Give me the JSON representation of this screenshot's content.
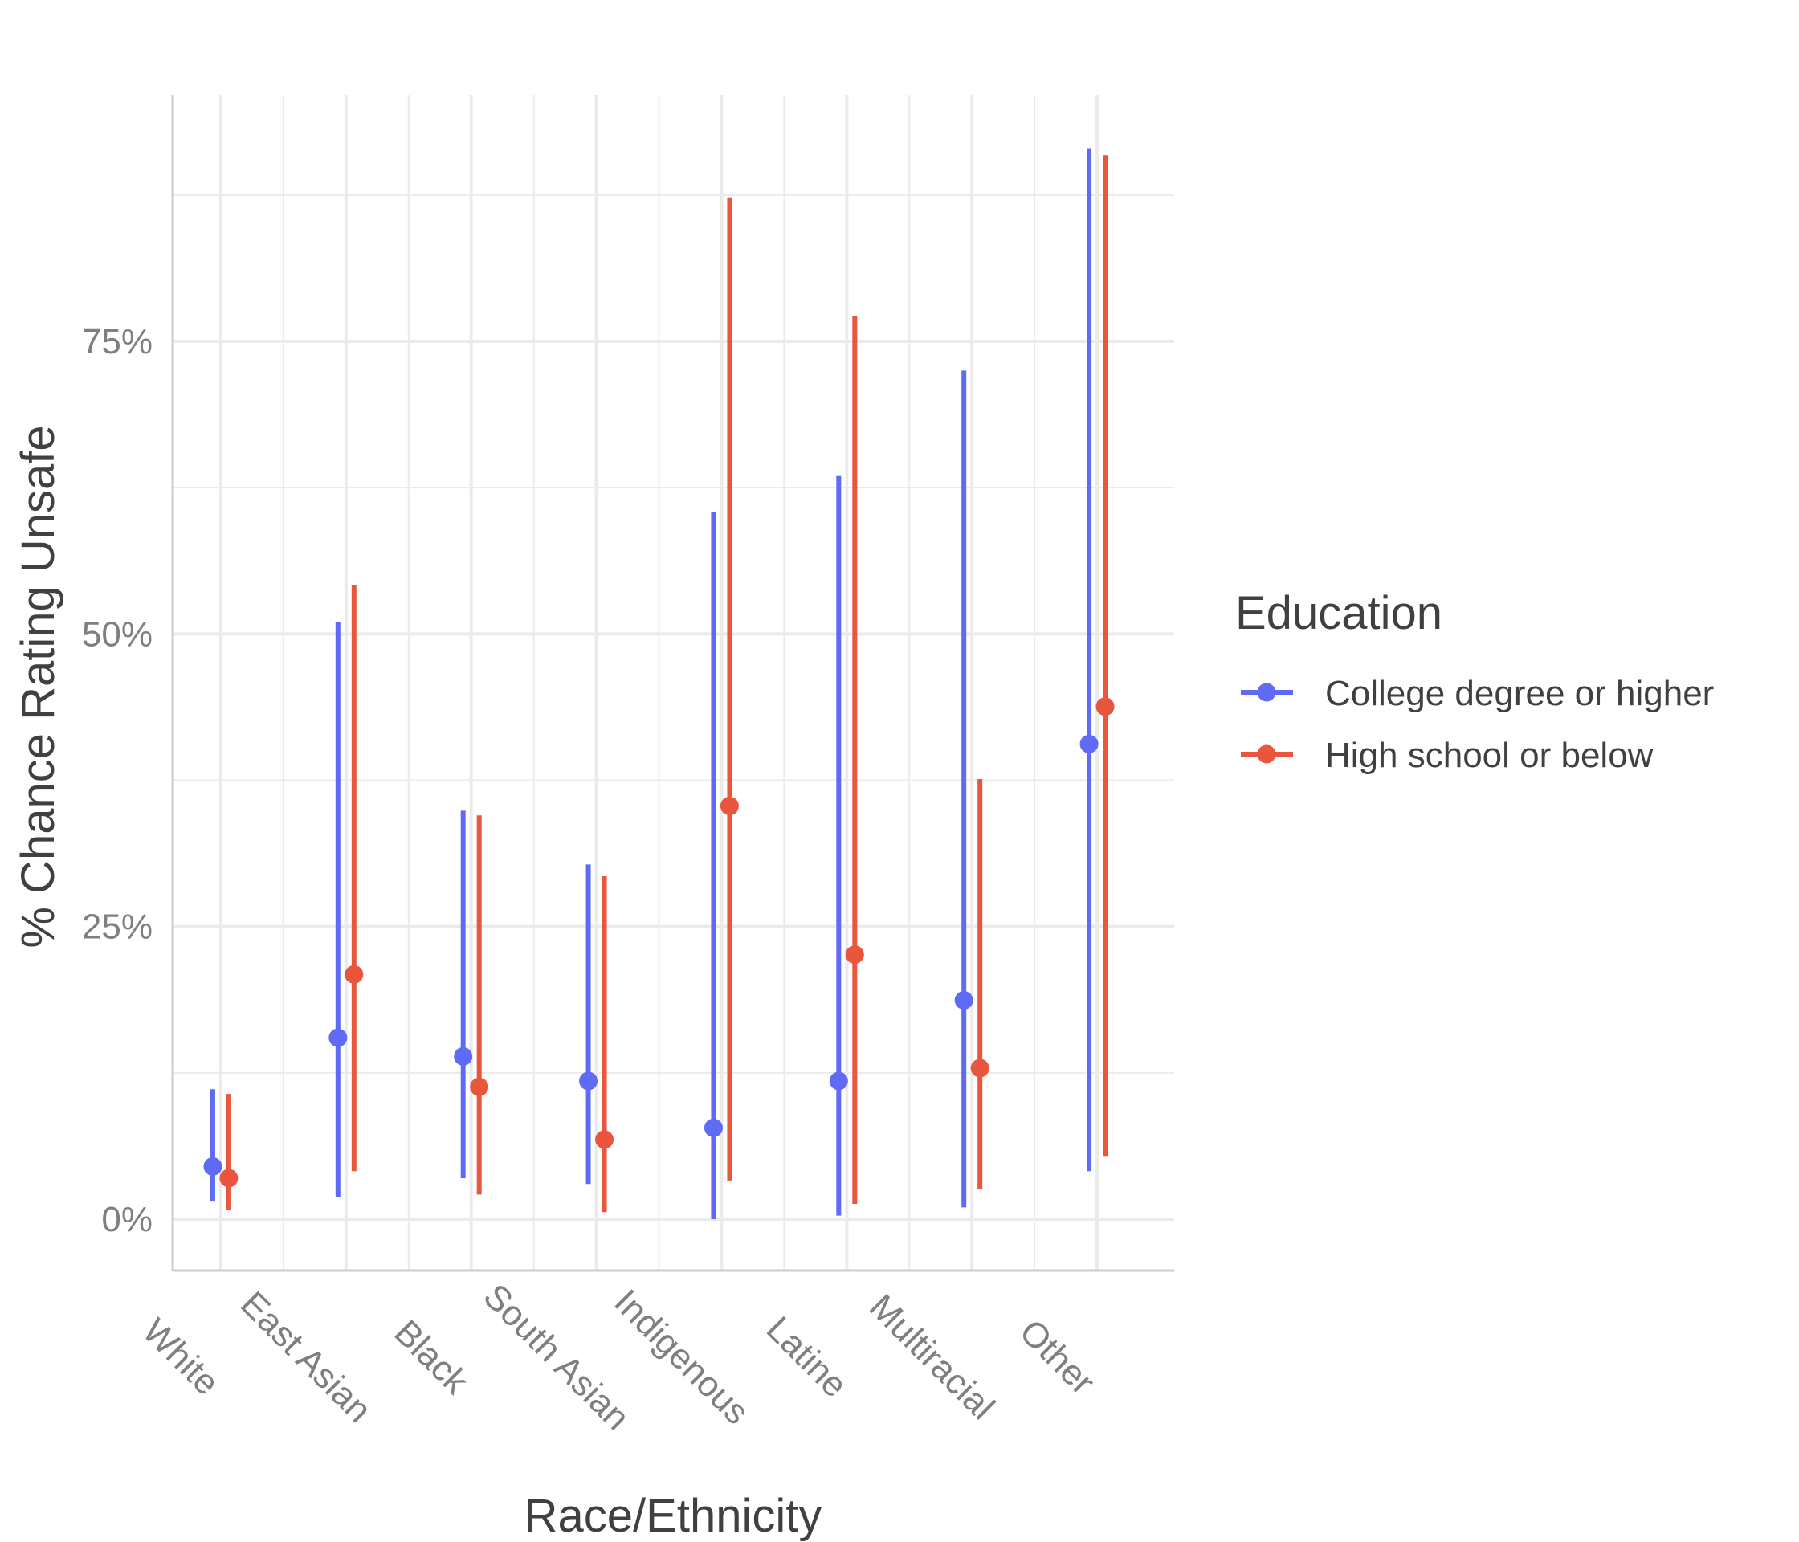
{
  "chart_data": {
    "type": "errorbar",
    "title": "",
    "xlabel": "Race/Ethnicity",
    "ylabel": "% Chance Rating Unsafe",
    "ylim": [
      -4.5,
      96
    ],
    "yticks": [
      0,
      25,
      50,
      75
    ],
    "ytick_labels": [
      "0%",
      "25%",
      "50%",
      "75%"
    ],
    "categories": [
      "White",
      "East Asian",
      "Black",
      "South Asian",
      "Indigenous",
      "Latine",
      "Multiracial",
      "Other"
    ],
    "legend": {
      "title": "Education",
      "position": "right"
    },
    "series": [
      {
        "name": "College degree or higher",
        "color": "#5f6af5",
        "estimate": [
          4.5,
          15.5,
          13.9,
          11.8,
          7.8,
          11.8,
          18.7,
          40.6
        ],
        "lower": [
          1.5,
          1.9,
          3.5,
          3.0,
          0.0,
          0.3,
          1.0,
          4.1
        ],
        "upper": [
          11.1,
          51.0,
          34.9,
          30.3,
          60.4,
          63.5,
          72.5,
          91.5
        ]
      },
      {
        "name": "High school or below",
        "color": "#e9553d",
        "estimate": [
          3.5,
          20.9,
          11.3,
          6.8,
          35.3,
          22.6,
          12.9,
          43.8
        ],
        "lower": [
          0.8,
          4.1,
          2.1,
          0.6,
          3.3,
          1.3,
          2.6,
          5.4
        ],
        "upper": [
          10.7,
          54.2,
          34.5,
          29.3,
          87.3,
          77.2,
          37.6,
          90.9
        ]
      }
    ]
  }
}
